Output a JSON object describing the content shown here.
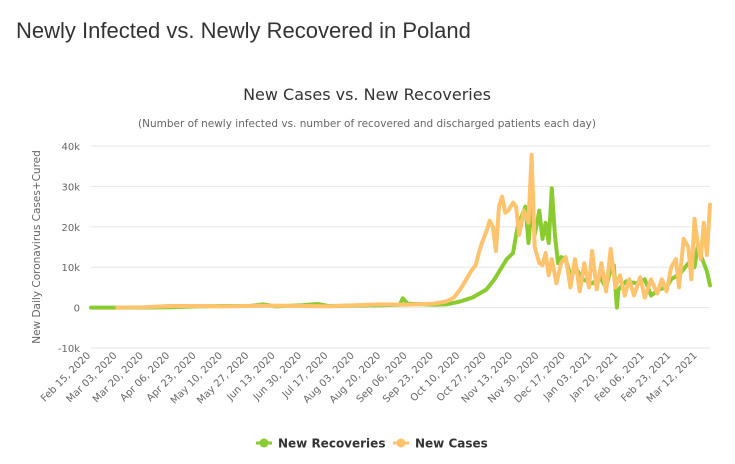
{
  "page": {
    "heading": "Newly Infected vs. Newly Recovered in Poland"
  },
  "colors": {
    "recoveries": "#8ACB30",
    "cases": "#FFC36E",
    "grid": "#e6e6e6"
  },
  "chart_data": {
    "type": "line",
    "title": "New Cases vs. New Recoveries",
    "subtitle": "(Number of newly infected vs. number of recovered and discharged patients each day)",
    "xlabel": "",
    "ylabel": "New Daily Coronavirus Cases+Cured",
    "ylim": [
      -10000,
      40000
    ],
    "yticks": [
      -10000,
      0,
      10000,
      20000,
      30000,
      40000
    ],
    "ytick_labels": [
      "-10k",
      "0",
      "10k",
      "20k",
      "30k",
      "40k"
    ],
    "xlim": [
      "2020-02-15",
      "2021-03-20"
    ],
    "xticks": [
      "2020-02-15",
      "2020-03-03",
      "2020-03-20",
      "2020-04-06",
      "2020-04-23",
      "2020-05-10",
      "2020-05-27",
      "2020-06-13",
      "2020-06-30",
      "2020-07-17",
      "2020-08-03",
      "2020-08-20",
      "2020-09-06",
      "2020-09-23",
      "2020-10-10",
      "2020-10-27",
      "2020-11-13",
      "2020-11-30",
      "2020-12-17",
      "2021-01-03",
      "2021-01-20",
      "2021-02-06",
      "2021-02-23",
      "2021-03-12"
    ],
    "xtick_labels": [
      "Feb 15, 2020",
      "Mar 03, 2020",
      "Mar 20, 2020",
      "Apr 06, 2020",
      "Apr 23, 2020",
      "May 10, 2020",
      "May 27, 2020",
      "Jun 13, 2020",
      "Jun 30, 2020",
      "Jul 17, 2020",
      "Aug 03, 2020",
      "Aug 20, 2020",
      "Sep 06, 2020",
      "Sep 23, 2020",
      "Oct 10, 2020",
      "Oct 27, 2020",
      "Nov 13, 2020",
      "Nov 30, 2020",
      "Dec 17, 2020",
      "Jan 03, 2021",
      "Jan 20, 2021",
      "Feb 06, 2021",
      "Feb 23, 2021",
      "Mar 12, 2021"
    ],
    "grid": true,
    "legend": "bottom-center",
    "series": [
      {
        "name": "New Recoveries",
        "color": "#8ACB30",
        "points": [
          [
            "2020-02-15",
            0
          ],
          [
            "2020-03-03",
            0
          ],
          [
            "2020-03-20",
            0
          ],
          [
            "2020-04-06",
            100
          ],
          [
            "2020-04-23",
            300
          ],
          [
            "2020-05-10",
            400
          ],
          [
            "2020-05-27",
            400
          ],
          [
            "2020-06-05",
            800
          ],
          [
            "2020-06-13",
            300
          ],
          [
            "2020-06-30",
            600
          ],
          [
            "2020-07-10",
            900
          ],
          [
            "2020-07-17",
            400
          ],
          [
            "2020-08-03",
            500
          ],
          [
            "2020-08-20",
            600
          ],
          [
            "2020-09-01",
            700
          ],
          [
            "2020-09-03",
            2300
          ],
          [
            "2020-09-06",
            1000
          ],
          [
            "2020-09-23",
            700
          ],
          [
            "2020-10-01",
            800
          ],
          [
            "2020-10-10",
            1500
          ],
          [
            "2020-10-18",
            2500
          ],
          [
            "2020-10-27",
            4500
          ],
          [
            "2020-11-01",
            7000
          ],
          [
            "2020-11-05",
            9500
          ],
          [
            "2020-11-09",
            12000
          ],
          [
            "2020-11-13",
            13500
          ],
          [
            "2020-11-16",
            20000
          ],
          [
            "2020-11-19",
            23000
          ],
          [
            "2020-11-21",
            25000
          ],
          [
            "2020-11-23",
            16000
          ],
          [
            "2020-11-25",
            25500
          ],
          [
            "2020-11-27",
            18000
          ],
          [
            "2020-11-30",
            24000
          ],
          [
            "2020-12-02",
            17000
          ],
          [
            "2020-12-04",
            21000
          ],
          [
            "2020-12-06",
            16000
          ],
          [
            "2020-12-08",
            29500
          ],
          [
            "2020-12-10",
            18000
          ],
          [
            "2020-12-12",
            11000
          ],
          [
            "2020-12-14",
            12500
          ],
          [
            "2020-12-17",
            12000
          ],
          [
            "2020-12-20",
            8000
          ],
          [
            "2020-12-24",
            9500
          ],
          [
            "2020-12-28",
            7000
          ],
          [
            "2021-01-03",
            6000
          ],
          [
            "2021-01-08",
            7500
          ],
          [
            "2021-01-12",
            5000
          ],
          [
            "2021-01-15",
            9500
          ],
          [
            "2021-01-17",
            10500
          ],
          [
            "2021-01-19",
            0
          ],
          [
            "2021-01-20",
            4500
          ],
          [
            "2021-01-25",
            6500
          ],
          [
            "2021-02-01",
            6000
          ],
          [
            "2021-02-06",
            7000
          ],
          [
            "2021-02-10",
            3000
          ],
          [
            "2021-02-15",
            4500
          ],
          [
            "2021-02-20",
            5000
          ],
          [
            "2021-02-23",
            7000
          ],
          [
            "2021-03-01",
            8500
          ],
          [
            "2021-03-06",
            11000
          ],
          [
            "2021-03-10",
            10000
          ],
          [
            "2021-03-12",
            15000
          ],
          [
            "2021-03-15",
            12000
          ],
          [
            "2021-03-18",
            9000
          ],
          [
            "2021-03-20",
            5500
          ]
        ]
      },
      {
        "name": "New Cases",
        "color": "#FFC36E",
        "points": [
          [
            "2020-03-03",
            0
          ],
          [
            "2020-03-20",
            100
          ],
          [
            "2020-04-06",
            400
          ],
          [
            "2020-04-23",
            400
          ],
          [
            "2020-05-10",
            300
          ],
          [
            "2020-05-27",
            400
          ],
          [
            "2020-06-13",
            500
          ],
          [
            "2020-06-30",
            400
          ],
          [
            "2020-07-17",
            300
          ],
          [
            "2020-08-03",
            600
          ],
          [
            "2020-08-20",
            800
          ],
          [
            "2020-09-06",
            700
          ],
          [
            "2020-09-23",
            1000
          ],
          [
            "2020-10-01",
            1500
          ],
          [
            "2020-10-06",
            2500
          ],
          [
            "2020-10-10",
            4500
          ],
          [
            "2020-10-14",
            7000
          ],
          [
            "2020-10-17",
            9000
          ],
          [
            "2020-10-20",
            10500
          ],
          [
            "2020-10-22",
            13500
          ],
          [
            "2020-10-24",
            16000
          ],
          [
            "2020-10-27",
            19000
          ],
          [
            "2020-10-29",
            21500
          ],
          [
            "2020-10-31",
            20000
          ],
          [
            "2020-11-02",
            14000
          ],
          [
            "2020-11-04",
            25000
          ],
          [
            "2020-11-06",
            27500
          ],
          [
            "2020-11-08",
            23500
          ],
          [
            "2020-11-10",
            24000
          ],
          [
            "2020-11-13",
            26000
          ],
          [
            "2020-11-15",
            25000
          ],
          [
            "2020-11-17",
            18000
          ],
          [
            "2020-11-20",
            24000
          ],
          [
            "2020-11-23",
            21000
          ],
          [
            "2020-11-25",
            37800
          ],
          [
            "2020-11-27",
            15000
          ],
          [
            "2020-11-30",
            11000
          ],
          [
            "2020-12-02",
            10500
          ],
          [
            "2020-12-04",
            13500
          ],
          [
            "2020-12-06",
            8000
          ],
          [
            "2020-12-08",
            12000
          ],
          [
            "2020-12-11",
            6000
          ],
          [
            "2020-12-14",
            11000
          ],
          [
            "2020-12-17",
            12500
          ],
          [
            "2020-12-20",
            5000
          ],
          [
            "2020-12-23",
            12000
          ],
          [
            "2020-12-26",
            4000
          ],
          [
            "2020-12-29",
            11000
          ],
          [
            "2021-01-01",
            5000
          ],
          [
            "2021-01-03",
            14000
          ],
          [
            "2021-01-06",
            4500
          ],
          [
            "2021-01-09",
            11000
          ],
          [
            "2021-01-12",
            4000
          ],
          [
            "2021-01-15",
            14500
          ],
          [
            "2021-01-18",
            5000
          ],
          [
            "2021-01-21",
            8000
          ],
          [
            "2021-01-24",
            3000
          ],
          [
            "2021-01-27",
            7000
          ],
          [
            "2021-01-30",
            3000
          ],
          [
            "2021-02-03",
            7500
          ],
          [
            "2021-02-06",
            2500
          ],
          [
            "2021-02-10",
            7000
          ],
          [
            "2021-02-14",
            3500
          ],
          [
            "2021-02-17",
            7000
          ],
          [
            "2021-02-20",
            4000
          ],
          [
            "2021-02-23",
            10000
          ],
          [
            "2021-02-26",
            12000
          ],
          [
            "2021-02-28",
            5000
          ],
          [
            "2021-03-03",
            17000
          ],
          [
            "2021-03-06",
            15000
          ],
          [
            "2021-03-08",
            7000
          ],
          [
            "2021-03-10",
            22000
          ],
          [
            "2021-03-12",
            16000
          ],
          [
            "2021-03-14",
            12000
          ],
          [
            "2021-03-16",
            21000
          ],
          [
            "2021-03-18",
            13000
          ],
          [
            "2021-03-20",
            25500
          ]
        ]
      }
    ]
  }
}
